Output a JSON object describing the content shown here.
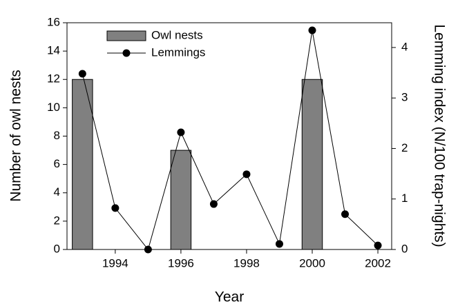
{
  "chart_data": {
    "type": "bar_line",
    "x_label": "Year",
    "y_label": "Number of owl nests",
    "y2_label": "Lemming index (N/100 trap-nights)",
    "xlim": [
      1992.53,
      2002.42
    ],
    "xticks": [
      1994,
      1996,
      1998,
      2000,
      2002
    ],
    "ylim": [
      0,
      16
    ],
    "yticks": [
      0,
      2,
      4,
      6,
      8,
      10,
      12,
      14,
      16
    ],
    "y2lim": [
      0,
      4.49
    ],
    "y2ticks": [
      0,
      1,
      2,
      3,
      4
    ],
    "legend": "upper left",
    "series": [
      {
        "name": "Owl nests",
        "type": "bar",
        "color": "#808080",
        "x": [
          1993,
          1996,
          2000
        ],
        "values": [
          12,
          7,
          12
        ]
      },
      {
        "name": "Lemmings",
        "type": "line",
        "axis": "y2",
        "color": "#000000",
        "x": [
          1993,
          1994,
          1995,
          1996,
          1997,
          1998,
          1999,
          2000,
          2001,
          2002
        ],
        "values": [
          3.48,
          0.82,
          0,
          2.32,
          0.9,
          1.49,
          0.11,
          4.34,
          0.7,
          0.08
        ]
      }
    ]
  }
}
